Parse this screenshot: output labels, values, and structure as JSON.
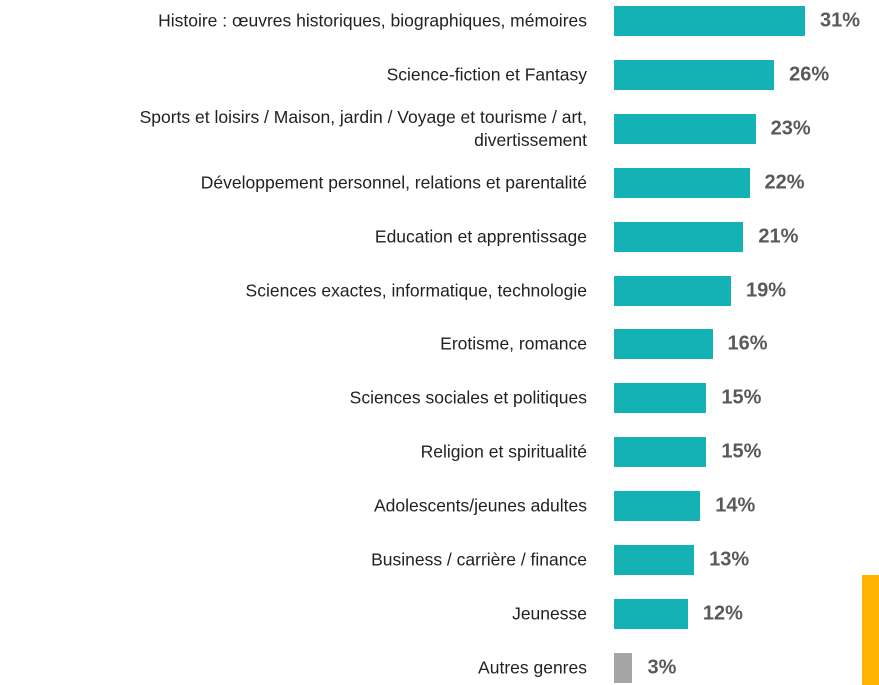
{
  "chart_data": {
    "type": "bar",
    "orientation": "horizontal",
    "categories": [
      "Histoire : œuvres historiques, biographiques, mémoires",
      "Science-fiction et Fantasy",
      "Sports et loisirs / Maison, jardin / Voyage et tourisme / art,\ndivertissement",
      "Développement personnel, relations et parentalité",
      "Education et apprentissage",
      "Sciences exactes, informatique, technologie",
      "Erotisme, romance",
      "Sciences sociales et politiques",
      "Religion et spiritualité",
      "Adolescents/jeunes adultes",
      "Business / carrière / finance",
      "Jeunesse",
      "Autres genres"
    ],
    "values": [
      31,
      26,
      23,
      22,
      21,
      19,
      16,
      15,
      15,
      14,
      13,
      12,
      3
    ],
    "value_labels": [
      "31%",
      "26%",
      "23%",
      "22%",
      "21%",
      "19%",
      "16%",
      "15%",
      "15%",
      "14%",
      "13%",
      "12%",
      "3%"
    ],
    "colors": [
      "#14b1b5",
      "#14b1b5",
      "#14b1b5",
      "#14b1b5",
      "#14b1b5",
      "#14b1b5",
      "#14b1b5",
      "#14b1b5",
      "#14b1b5",
      "#14b1b5",
      "#14b1b5",
      "#14b1b5",
      "#a6a6a6"
    ]
  }
}
